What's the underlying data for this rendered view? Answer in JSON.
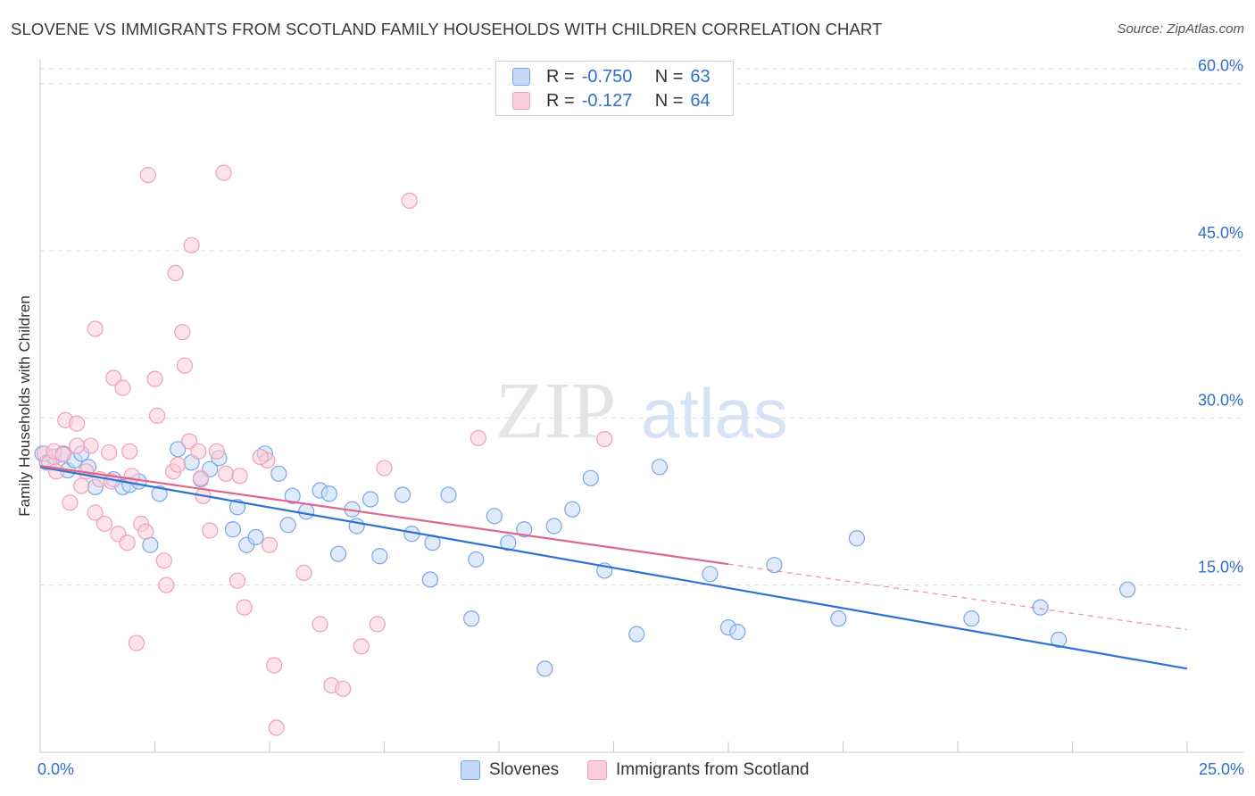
{
  "chart_data": {
    "type": "scatter",
    "title": "SLOVENE VS IMMIGRANTS FROM SCOTLAND FAMILY HOUSEHOLDS WITH CHILDREN CORRELATION CHART",
    "source": "Source: ZipAtlas.com",
    "xlabel": "",
    "ylabel": "Family Households with Children",
    "xlim": [
      0,
      25
    ],
    "ylim": [
      0,
      61.5
    ],
    "x_tick_labels": {
      "left": "0.0%",
      "right": "25.0%"
    },
    "y_ticks": [
      {
        "value": 15,
        "label": "15.0%"
      },
      {
        "value": 30,
        "label": "30.0%"
      },
      {
        "value": 45,
        "label": "45.0%"
      },
      {
        "value": 60,
        "label": "60.0%"
      }
    ],
    "grid": true,
    "watermark": "ZIPatlas",
    "legend": {
      "position": "top-center",
      "entries": [
        {
          "r_label": "R =",
          "r_value": "-0.750",
          "n_label": "N =",
          "n_value": "63"
        },
        {
          "r_label": "R =",
          "r_value": "-0.127",
          "n_label": "N =",
          "n_value": "64"
        }
      ]
    },
    "series": [
      {
        "name": "Slovenes",
        "color": "#7aa6e8",
        "fill": "#c5d8f5",
        "trend_color": "#2f72d4",
        "trend": {
          "x0": 0.0,
          "y0": 25.6,
          "x1": 25.0,
          "y1": 7.5,
          "solid_until": 25.0
        },
        "points": [
          [
            0.05,
            26.8
          ],
          [
            0.15,
            26.0
          ],
          [
            0.3,
            26.5
          ],
          [
            0.5,
            26.8
          ],
          [
            0.6,
            25.3
          ],
          [
            0.75,
            26.2
          ],
          [
            0.9,
            26.8
          ],
          [
            1.05,
            25.6
          ],
          [
            1.2,
            23.8
          ],
          [
            1.6,
            24.5
          ],
          [
            1.8,
            23.8
          ],
          [
            1.95,
            24.0
          ],
          [
            2.15,
            24.3
          ],
          [
            2.6,
            23.2
          ],
          [
            2.4,
            18.6
          ],
          [
            3.0,
            27.2
          ],
          [
            3.3,
            26.0
          ],
          [
            3.5,
            24.5
          ],
          [
            3.7,
            25.4
          ],
          [
            3.9,
            26.4
          ],
          [
            4.2,
            20.0
          ],
          [
            4.3,
            22.0
          ],
          [
            4.5,
            18.6
          ],
          [
            4.7,
            19.3
          ],
          [
            4.9,
            26.8
          ],
          [
            5.2,
            25.0
          ],
          [
            5.4,
            20.4
          ],
          [
            5.5,
            23.0
          ],
          [
            5.8,
            21.6
          ],
          [
            6.1,
            23.5
          ],
          [
            6.3,
            23.2
          ],
          [
            6.5,
            17.8
          ],
          [
            6.8,
            21.8
          ],
          [
            6.9,
            20.3
          ],
          [
            7.2,
            22.7
          ],
          [
            7.4,
            17.6
          ],
          [
            7.9,
            23.1
          ],
          [
            8.1,
            19.6
          ],
          [
            8.5,
            15.5
          ],
          [
            8.55,
            18.8
          ],
          [
            8.9,
            23.1
          ],
          [
            9.4,
            12.0
          ],
          [
            9.5,
            17.3
          ],
          [
            9.9,
            21.2
          ],
          [
            10.2,
            18.8
          ],
          [
            10.55,
            20.0
          ],
          [
            11.0,
            7.5
          ],
          [
            11.2,
            20.3
          ],
          [
            11.6,
            21.8
          ],
          [
            12.0,
            24.6
          ],
          [
            12.3,
            16.3
          ],
          [
            13.0,
            10.6
          ],
          [
            13.5,
            25.6
          ],
          [
            14.6,
            16.0
          ],
          [
            15.0,
            11.2
          ],
          [
            15.2,
            10.8
          ],
          [
            16.0,
            16.8
          ],
          [
            17.4,
            12.0
          ],
          [
            17.8,
            19.2
          ],
          [
            20.3,
            12.0
          ],
          [
            21.8,
            13.0
          ],
          [
            22.2,
            10.1
          ],
          [
            23.7,
            14.6
          ]
        ]
      },
      {
        "name": "Immigrants from Scotland",
        "color": "#f0a0b8",
        "fill": "#f9cdd9",
        "trend_color": "#e0648c",
        "trend": {
          "x0": 0.0,
          "y0": 25.7,
          "x1": 25.0,
          "y1": 11.0,
          "solid_until": 15.0
        },
        "points": [
          [
            0.1,
            26.8
          ],
          [
            0.2,
            26.0
          ],
          [
            0.3,
            27.0
          ],
          [
            0.35,
            25.2
          ],
          [
            0.5,
            26.7
          ],
          [
            0.55,
            29.8
          ],
          [
            0.65,
            22.4
          ],
          [
            0.8,
            29.5
          ],
          [
            0.9,
            23.9
          ],
          [
            1.0,
            25.2
          ],
          [
            1.1,
            27.5
          ],
          [
            1.2,
            38.0
          ],
          [
            1.2,
            21.5
          ],
          [
            1.3,
            24.5
          ],
          [
            1.4,
            20.5
          ],
          [
            1.55,
            24.3
          ],
          [
            1.6,
            33.6
          ],
          [
            1.7,
            19.6
          ],
          [
            1.8,
            32.7
          ],
          [
            1.9,
            18.8
          ],
          [
            1.95,
            27.0
          ],
          [
            2.1,
            9.8
          ],
          [
            2.2,
            20.5
          ],
          [
            2.3,
            19.8
          ],
          [
            2.35,
            51.8
          ],
          [
            2.5,
            33.5
          ],
          [
            2.55,
            30.2
          ],
          [
            2.7,
            17.2
          ],
          [
            2.75,
            15.0
          ],
          [
            2.9,
            25.2
          ],
          [
            2.95,
            43.0
          ],
          [
            3.1,
            37.7
          ],
          [
            3.15,
            34.7
          ],
          [
            3.25,
            27.9
          ],
          [
            3.3,
            45.5
          ],
          [
            3.45,
            27.0
          ],
          [
            3.5,
            24.6
          ],
          [
            3.55,
            23.0
          ],
          [
            3.7,
            19.9
          ],
          [
            3.85,
            27.0
          ],
          [
            4.0,
            52.0
          ],
          [
            4.05,
            25.0
          ],
          [
            4.3,
            15.4
          ],
          [
            4.35,
            24.8
          ],
          [
            4.45,
            13.0
          ],
          [
            4.95,
            26.2
          ],
          [
            5.0,
            18.6
          ],
          [
            5.1,
            7.8
          ],
          [
            5.15,
            2.2
          ],
          [
            5.75,
            16.1
          ],
          [
            6.1,
            11.5
          ],
          [
            6.35,
            6.0
          ],
          [
            6.6,
            5.7
          ],
          [
            7.0,
            9.5
          ],
          [
            7.35,
            11.5
          ],
          [
            7.5,
            25.5
          ],
          [
            8.05,
            49.5
          ],
          [
            9.55,
            28.2
          ],
          [
            12.3,
            28.1
          ],
          [
            0.8,
            27.5
          ],
          [
            1.5,
            26.9
          ],
          [
            2.0,
            24.8
          ],
          [
            3.0,
            25.8
          ],
          [
            4.8,
            26.5
          ]
        ]
      }
    ]
  }
}
